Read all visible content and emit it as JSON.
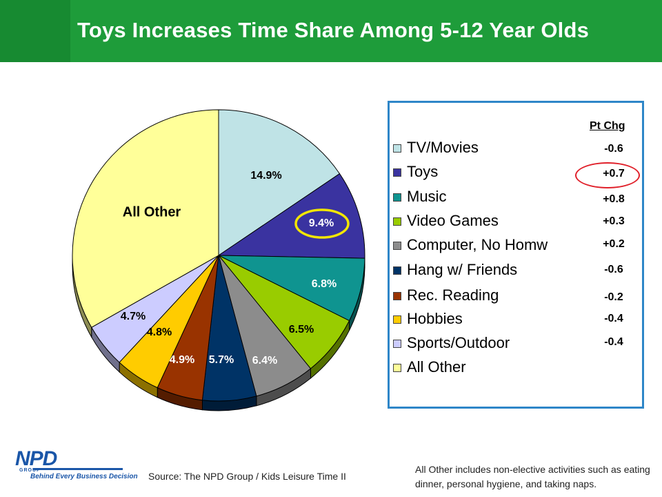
{
  "title": "Toys Increases Time Share Among 5-12 Year Olds",
  "colors": {
    "title_bar": "#1e9c3a",
    "legend_border": "#2e86c8",
    "highlight_ring": "#f2e600",
    "pt_change_ring": "#e0202a"
  },
  "chart_data": {
    "type": "pie",
    "slices": [
      {
        "name": "TV/Movies",
        "value": 14.9,
        "label": "14.9%",
        "color": "#bfe3e6",
        "pt_chg": "-0.6"
      },
      {
        "name": "Toys",
        "value": 9.4,
        "label": "9.4%",
        "color": "#3a33a0",
        "pt_chg": "+0.7",
        "highlighted": true
      },
      {
        "name": "Music",
        "value": 6.8,
        "label": "6.8%",
        "color": "#0f9490",
        "pt_chg": "+0.8"
      },
      {
        "name": "Video Games",
        "value": 6.5,
        "label": "6.5%",
        "color": "#99cc00",
        "pt_chg": "+0.3"
      },
      {
        "name": "Computer, No Homw",
        "value": 6.4,
        "label": "6.4%",
        "color": "#8c8c8c",
        "pt_chg": "+0.2"
      },
      {
        "name": "Hang w/ Friends",
        "value": 5.7,
        "label": "5.7%",
        "color": "#003366",
        "pt_chg": "-0.6"
      },
      {
        "name": "Rec. Reading",
        "value": 4.9,
        "label": "4.9%",
        "color": "#993300",
        "pt_chg": "-0.2"
      },
      {
        "name": "Hobbies",
        "value": 4.8,
        "label": "4.8%",
        "color": "#ffcc00",
        "pt_chg": "-0.4"
      },
      {
        "name": "Sports/Outdoor",
        "value": 4.7,
        "label": "4.7%",
        "color": "#ccccff",
        "pt_chg": "-0.4"
      },
      {
        "name": "All Other",
        "value": 31.9,
        "label": "All Other",
        "color": "#ffff99",
        "pt_chg": ""
      }
    ],
    "legend_position": "right",
    "pt_chg_header": "Pt Chg"
  },
  "logo": {
    "mark": "NPD",
    "group": "GROUP",
    "tagline": "Behind Every Business Decision"
  },
  "source": "Source:  The NPD Group / Kids Leisure Time II",
  "footnote": "All Other includes non-elective activities such as eating dinner, personal hygiene, and taking naps."
}
